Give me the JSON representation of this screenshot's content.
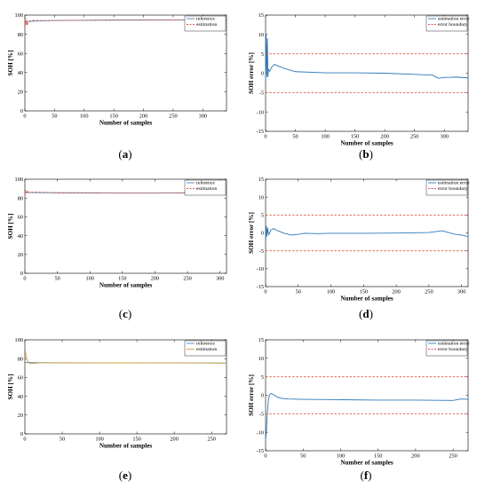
{
  "chart_data": [
    {
      "panel": "a",
      "type": "line",
      "xlabel": "Number of samples",
      "ylabel": "SOH [%]",
      "xlim": [
        0,
        340
      ],
      "ylim": [
        0,
        100
      ],
      "xticks": [
        0,
        50,
        100,
        150,
        200,
        250,
        300
      ],
      "yticks": [
        0,
        20,
        40,
        60,
        80,
        100
      ],
      "legend": "top-right",
      "grid": false,
      "series": [
        {
          "name": "reference",
          "color": "#4a86c5",
          "dash": "solid",
          "x": [
            0,
            5,
            20,
            50,
            100,
            150,
            200,
            250,
            300,
            340
          ],
          "y": [
            92.5,
            93.2,
            93.8,
            94.4,
            94.6,
            94.8,
            94.9,
            95.0,
            95.1,
            95.0
          ]
        },
        {
          "name": "estimation",
          "color": "#e0533b",
          "dash": "dashed",
          "x": [
            0,
            1,
            2,
            3,
            4,
            5,
            7,
            10,
            15,
            25,
            50,
            100,
            150,
            200,
            250,
            300,
            340
          ],
          "y": [
            84,
            97,
            90,
            95,
            89,
            92,
            93,
            94.5,
            94.5,
            94.2,
            94.3,
            94.5,
            94.7,
            94.8,
            94.9,
            94.9,
            94.8
          ]
        }
      ]
    },
    {
      "panel": "b",
      "type": "line",
      "xlabel": "Number of samples",
      "ylabel": "SOH error [%]",
      "xlim": [
        0,
        340
      ],
      "ylim": [
        -15,
        15
      ],
      "xticks": [
        0,
        50,
        100,
        150,
        200,
        250,
        300
      ],
      "yticks": [
        -15,
        -10,
        -5,
        0,
        5,
        10,
        15
      ],
      "legend": "top-right",
      "grid": false,
      "series": [
        {
          "name": "estimation error",
          "color": "#2f78b7",
          "dash": "solid",
          "x": [
            0,
            1,
            2,
            3,
            4,
            5,
            7,
            10,
            15,
            20,
            30,
            50,
            100,
            150,
            200,
            250,
            280,
            290,
            300,
            320,
            340
          ],
          "y": [
            -2,
            10,
            -1,
            9,
            -1,
            1,
            0.5,
            1.5,
            2.3,
            1.9,
            1.3,
            0.4,
            0.1,
            0.1,
            0.0,
            -0.3,
            -0.5,
            -1.3,
            -1.1,
            -1.0,
            -1.2
          ]
        },
        {
          "name": "error boundary",
          "color": "#e0533b",
          "dash": "dashed",
          "x": [
            0,
            340
          ],
          "y": [
            5,
            5
          ]
        },
        {
          "name": "",
          "color": "#e0533b",
          "dash": "dashed",
          "x": [
            0,
            340
          ],
          "y": [
            -5,
            -5
          ]
        }
      ]
    },
    {
      "panel": "c",
      "type": "line",
      "xlabel": "Number of samples",
      "ylabel": "SOH [%]",
      "xlim": [
        0,
        310
      ],
      "ylim": [
        0,
        100
      ],
      "xticks": [
        0,
        50,
        100,
        150,
        200,
        250,
        300
      ],
      "yticks": [
        0,
        20,
        40,
        60,
        80,
        100
      ],
      "legend": "top-right",
      "grid": false,
      "series": [
        {
          "name": "reference",
          "color": "#4a86c5",
          "dash": "solid",
          "x": [
            0,
            10,
            50,
            100,
            200,
            270,
            300,
            310
          ],
          "y": [
            86,
            85.8,
            85.6,
            85.5,
            85.4,
            85.4,
            85.4,
            85.5
          ]
        },
        {
          "name": "estimation",
          "color": "#e0533b",
          "dash": "dashed",
          "x": [
            0,
            1,
            2,
            3,
            4,
            5,
            8,
            15,
            30,
            50,
            100,
            200,
            270,
            290,
            310
          ],
          "y": [
            83,
            88.5,
            85,
            88,
            85,
            86.5,
            86,
            86.5,
            86,
            85.5,
            85.5,
            85.4,
            85.8,
            85,
            84.8
          ]
        }
      ]
    },
    {
      "panel": "d",
      "type": "line",
      "xlabel": "Number of samples",
      "ylabel": "SOH error [%]",
      "xlim": [
        0,
        310
      ],
      "ylim": [
        -15,
        15
      ],
      "xticks": [
        0,
        50,
        100,
        150,
        200,
        250,
        300
      ],
      "yticks": [
        -15,
        -10,
        -5,
        0,
        5,
        10,
        15
      ],
      "legend": "top-right",
      "grid": false,
      "series": [
        {
          "name": "estimation error",
          "color": "#2f78b7",
          "dash": "solid",
          "x": [
            0,
            1,
            2,
            3,
            4,
            5,
            8,
            12,
            20,
            30,
            40,
            50,
            60,
            80,
            100,
            150,
            200,
            250,
            270,
            280,
            290,
            300,
            310
          ],
          "y": [
            -3,
            2,
            -1,
            1.5,
            0.2,
            -0.5,
            0.8,
            1.2,
            0.5,
            -0.2,
            -0.6,
            -0.4,
            -0.1,
            -0.2,
            -0.1,
            -0.1,
            -0.05,
            0.1,
            0.6,
            0.1,
            -0.4,
            -0.6,
            -1.0
          ]
        },
        {
          "name": "error boundary",
          "color": "#e0533b",
          "dash": "dashed",
          "x": [
            0,
            310
          ],
          "y": [
            5,
            5
          ]
        },
        {
          "name": "",
          "color": "#e0533b",
          "dash": "dashed",
          "x": [
            0,
            310
          ],
          "y": [
            -5,
            -5
          ]
        }
      ]
    },
    {
      "panel": "e",
      "type": "line",
      "xlabel": "Number of samples",
      "ylabel": "SOH [%]",
      "xlim": [
        0,
        270
      ],
      "ylim": [
        0,
        100
      ],
      "xticks": [
        0,
        50,
        100,
        150,
        200,
        250
      ],
      "yticks": [
        0,
        20,
        40,
        60,
        80,
        100
      ],
      "legend": "top-right",
      "grid": false,
      "series": [
        {
          "name": "reference",
          "color": "#4a86c5",
          "dash": "solid",
          "x": [
            0,
            10,
            50,
            100,
            200,
            270
          ],
          "y": [
            76,
            75.8,
            75.6,
            75.5,
            75.4,
            75.3
          ]
        },
        {
          "name": "estimation",
          "color": "#d4a23a",
          "dash": "solid",
          "x": [
            0,
            1,
            2,
            3,
            4,
            5,
            7,
            10,
            20,
            50,
            100,
            200,
            250,
            260,
            270
          ],
          "y": [
            86,
            87,
            80,
            79,
            77,
            75.5,
            75,
            74.8,
            75.5,
            75.5,
            75.5,
            75.4,
            75.3,
            75.2,
            75.2
          ]
        }
      ]
    },
    {
      "panel": "f",
      "type": "line",
      "xlabel": "Number of samples",
      "ylabel": "SOH error [%]",
      "xlim": [
        0,
        270
      ],
      "ylim": [
        -15,
        15
      ],
      "xticks": [
        0,
        50,
        100,
        150,
        200,
        250
      ],
      "yticks": [
        -15,
        -10,
        -5,
        0,
        5,
        10,
        15
      ],
      "legend": "top-right",
      "grid": false,
      "series": [
        {
          "name": "estimation error",
          "color": "#2f78b7",
          "dash": "solid",
          "x": [
            0,
            1,
            2,
            3,
            4,
            5,
            6,
            8,
            10,
            15,
            20,
            30,
            50,
            100,
            150,
            200,
            250,
            260,
            270
          ],
          "y": [
            -12,
            -10,
            -6,
            -3,
            -1,
            0,
            0.3,
            0.5,
            0.2,
            -0.4,
            -0.8,
            -1.0,
            -1.1,
            -1.2,
            -1.3,
            -1.3,
            -1.4,
            -1.0,
            -1.1
          ]
        },
        {
          "name": "error boundary",
          "color": "#e0533b",
          "dash": "dashed",
          "x": [
            0,
            270
          ],
          "y": [
            5,
            5
          ]
        },
        {
          "name": "",
          "color": "#e0533b",
          "dash": "dashed",
          "x": [
            0,
            270
          ],
          "y": [
            -5,
            -5
          ]
        }
      ]
    }
  ],
  "captions": [
    "a",
    "b",
    "c",
    "d",
    "e",
    "f"
  ]
}
